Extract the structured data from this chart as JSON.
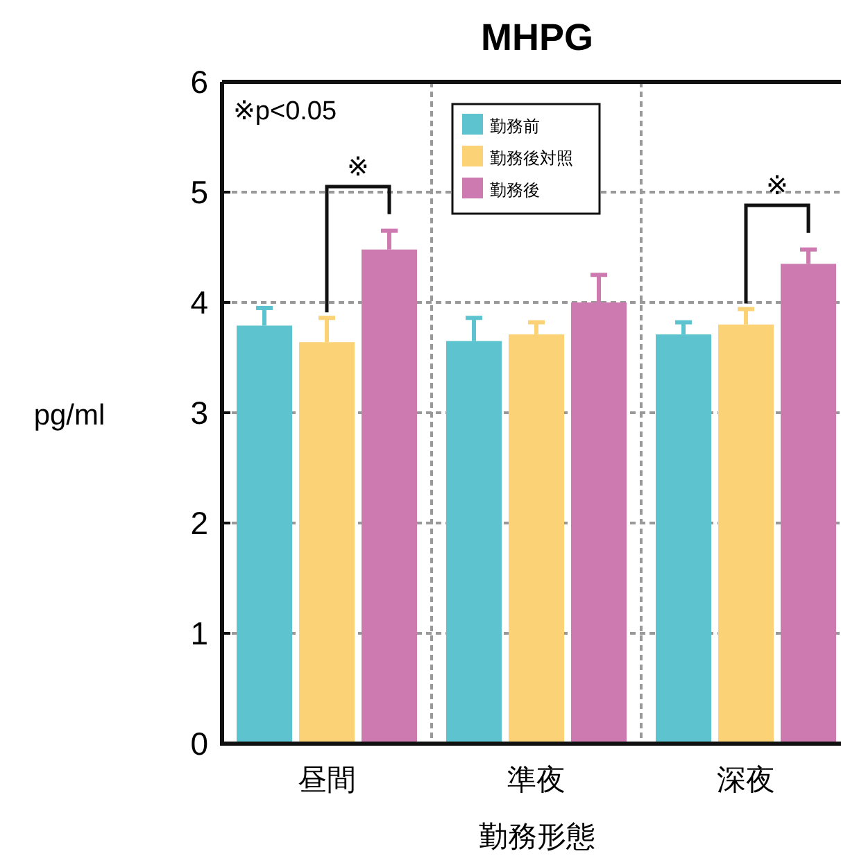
{
  "chart_data": {
    "type": "bar",
    "title": "MHPG",
    "xlabel": "勤務形態",
    "ylabel": "pg/ml",
    "categories": [
      "昼間",
      "準夜",
      "深夜"
    ],
    "series": [
      {
        "name": "勤務前",
        "color": "#5cc3cf",
        "values": [
          3.79,
          3.65,
          3.71
        ],
        "errors": [
          0.16,
          0.21,
          0.11
        ]
      },
      {
        "name": "勤務後対照",
        "color": "#fbd376",
        "values": [
          3.64,
          3.71,
          3.8
        ],
        "errors": [
          0.22,
          0.11,
          0.14
        ]
      },
      {
        "name": "勤務後",
        "color": "#cc7ab0",
        "values": [
          4.48,
          4.0,
          4.35
        ],
        "errors": [
          0.17,
          0.25,
          0.13
        ]
      }
    ],
    "ylim": [
      0,
      6
    ],
    "yticks": [
      0,
      1,
      2,
      3,
      4,
      5,
      6
    ],
    "grid": true,
    "legend": "top",
    "annotations": [
      "※p<0.05",
      "※",
      "※"
    ]
  }
}
